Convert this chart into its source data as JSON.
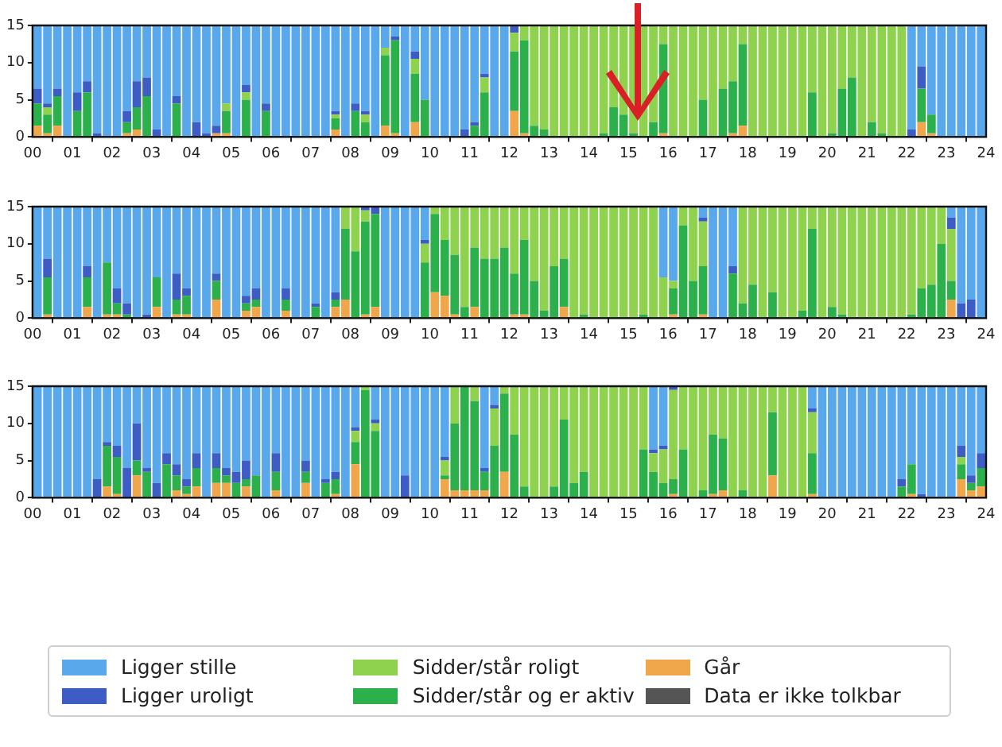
{
  "chart_data": [
    {
      "type": "bar",
      "stacked": true,
      "xlim": [
        0,
        24
      ],
      "ylim": [
        0,
        15
      ],
      "yticks": [
        0,
        5,
        10,
        15
      ],
      "legend": "bottom",
      "xticks": [
        {
          "value": 0,
          "label": "00"
        },
        {
          "value": 1,
          "label": "01"
        },
        {
          "value": 2,
          "label": "02"
        },
        {
          "value": 3,
          "label": "03"
        },
        {
          "value": 4,
          "label": "04"
        },
        {
          "value": 5,
          "label": "05"
        },
        {
          "value": 6,
          "label": "06"
        },
        {
          "value": 7,
          "label": "07"
        },
        {
          "value": 8,
          "label": "08"
        },
        {
          "value": 9,
          "label": "09"
        },
        {
          "value": 10,
          "label": "10"
        },
        {
          "value": 11,
          "label": "11"
        },
        {
          "value": 12,
          "label": "12"
        },
        {
          "value": 13,
          "label": "13"
        },
        {
          "value": 14,
          "label": "14"
        },
        {
          "value": 15,
          "label": "15"
        },
        {
          "value": 16,
          "label": "16"
        },
        {
          "value": 17,
          "label": "17"
        },
        {
          "value": 18,
          "label": "18"
        },
        {
          "value": 19,
          "label": "19"
        },
        {
          "value": 20,
          "label": "20"
        },
        {
          "value": 21,
          "label": "21"
        },
        {
          "value": 22,
          "label": "22"
        },
        {
          "value": 23,
          "label": "23"
        },
        {
          "value": 24,
          "label": "24"
        }
      ],
      "x": [
        0.125,
        0.375,
        0.625,
        0.875,
        1.125,
        1.375,
        1.625,
        1.875,
        2.125,
        2.375,
        2.625,
        2.875,
        3.125,
        3.375,
        3.625,
        3.875,
        4.125,
        4.375,
        4.625,
        4.875,
        5.125,
        5.375,
        5.625,
        5.875,
        6.125,
        6.375,
        6.625,
        6.875,
        7.125,
        7.375,
        7.625,
        7.875,
        8.125,
        8.375,
        8.625,
        8.875,
        9.125,
        9.375,
        9.625,
        9.875,
        10.125,
        10.375,
        10.625,
        10.875,
        11.125,
        11.375,
        11.625,
        11.875,
        12.125,
        12.375,
        12.625,
        12.875,
        13.125,
        13.375,
        13.625,
        13.875,
        14.125,
        14.375,
        14.625,
        14.875,
        15.125,
        15.375,
        15.625,
        15.875,
        16.125,
        16.375,
        16.625,
        16.875,
        17.125,
        17.375,
        17.625,
        17.875,
        18.125,
        18.375,
        18.625,
        18.875,
        19.125,
        19.375,
        19.625,
        19.875,
        20.125,
        20.375,
        20.625,
        20.875,
        21.125,
        21.375,
        21.625,
        21.875,
        22.125,
        22.375,
        22.625,
        22.875,
        23.125,
        23.375,
        23.625,
        23.875
      ],
      "series": [
        {
          "name": "Går",
          "color": "#f0a64a",
          "values": [
            1.5,
            0.5,
            1.5,
            0,
            0,
            0,
            0,
            0,
            0,
            0.5,
            1,
            0,
            0,
            0,
            0,
            0,
            0,
            0,
            0.5,
            0.5,
            0,
            0,
            0,
            0,
            0,
            0,
            0,
            0,
            0,
            0,
            1,
            0,
            0,
            0,
            0,
            1.5,
            0.5,
            0,
            2,
            0,
            0,
            0,
            0,
            0,
            0,
            0,
            0,
            0,
            3.5,
            0.5,
            0,
            0,
            0,
            0,
            0,
            0,
            0,
            0,
            0,
            0,
            0,
            0,
            0,
            0.5,
            0,
            0,
            0,
            0,
            0,
            0,
            0.5,
            1.5,
            0,
            0,
            0,
            0,
            0,
            0,
            0,
            0,
            0,
            0,
            0,
            0,
            0,
            0,
            0,
            0,
            0,
            2,
            0.5,
            0,
            0,
            0,
            0,
            0
          ]
        },
        {
          "name": "Sidder/står og er aktiv",
          "color": "#2cb04c",
          "values": [
            3,
            2.5,
            4,
            0,
            3.5,
            6,
            0,
            0,
            0,
            1.5,
            3,
            5.5,
            0,
            0,
            4.5,
            0,
            0,
            0,
            0,
            3,
            0,
            5,
            0,
            3.5,
            0,
            0,
            0,
            0,
            0,
            0,
            1.5,
            0,
            3.5,
            2,
            0,
            9.5,
            12.5,
            0,
            6.5,
            5,
            0,
            0,
            0,
            0,
            1.5,
            6,
            0,
            0,
            8,
            12.5,
            1.5,
            1,
            0,
            0,
            0,
            0,
            0,
            0.5,
            4,
            3,
            0.5,
            0,
            2,
            12,
            0,
            0,
            0,
            5,
            0,
            6.5,
            7,
            11,
            0,
            0,
            0,
            0,
            0,
            0,
            6,
            0,
            0.5,
            6.5,
            8,
            0,
            2,
            0.5,
            0,
            0,
            0,
            4.5,
            2.5,
            0,
            0,
            0,
            0,
            0
          ]
        },
        {
          "name": "Sidder/står roligt",
          "color": "#8ed24e",
          "values": [
            0,
            1,
            0,
            0,
            0,
            0,
            0,
            0,
            0,
            0,
            0,
            0,
            0,
            0,
            0,
            0,
            0,
            0,
            0,
            1,
            0,
            1,
            0,
            0,
            0,
            0,
            0,
            0,
            0,
            0,
            0.5,
            0,
            0,
            1,
            0,
            1,
            0,
            0,
            2,
            0,
            0,
            0,
            0,
            0,
            0,
            2,
            0,
            0,
            2.5,
            2,
            13.5,
            14,
            15,
            15,
            15,
            15,
            15,
            14.5,
            11,
            12,
            14.5,
            15,
            13,
            2.5,
            15,
            15,
            15,
            10,
            15,
            8.5,
            7.5,
            2.5,
            15,
            15,
            15,
            15,
            15,
            15,
            9,
            15,
            14.5,
            8.5,
            7,
            15,
            13,
            14.5,
            15,
            15,
            0,
            0,
            0,
            0,
            0,
            0,
            0,
            0
          ]
        },
        {
          "name": "Ligger uroligt",
          "color": "#3d5cc4",
          "values": [
            2,
            0.5,
            1,
            0,
            2.5,
            1.5,
            0.5,
            0,
            0,
            1.5,
            3.5,
            2.5,
            1,
            0,
            1,
            0,
            2,
            0.5,
            1,
            0,
            0,
            1,
            0,
            1,
            0,
            0,
            0,
            0,
            0,
            0,
            0.5,
            0,
            1,
            0.5,
            0,
            0,
            0.5,
            0,
            1,
            0,
            0,
            0,
            0,
            1,
            0.5,
            0.5,
            0,
            0,
            1,
            0,
            0,
            0,
            0,
            0,
            0,
            0,
            0,
            0,
            0,
            0,
            0,
            0,
            0,
            0,
            0,
            0,
            0,
            0,
            0,
            0,
            0,
            0,
            0,
            0,
            0,
            0,
            0,
            0,
            0,
            0,
            0,
            0,
            0,
            0,
            0,
            0,
            0,
            0,
            1,
            3,
            0,
            0,
            0,
            0,
            0,
            0
          ]
        },
        {
          "name": "Ligger stille",
          "color": "#5aa8ec",
          "values": [
            8.5,
            10.5,
            8.5,
            15,
            9,
            7.5,
            14.5,
            15,
            15,
            11.5,
            7.5,
            7,
            14,
            15,
            9.5,
            15,
            13,
            14.5,
            13.5,
            10.5,
            15,
            8,
            15,
            10.5,
            15,
            15,
            15,
            15,
            15,
            15,
            11.5,
            15,
            10.5,
            11.5,
            15,
            3,
            1.5,
            15,
            3.5,
            10,
            15,
            15,
            15,
            14,
            13,
            6.5,
            15,
            15,
            0,
            0,
            0,
            0,
            0,
            0,
            0,
            0,
            0,
            0,
            0,
            0,
            0,
            0,
            0,
            0,
            0,
            0,
            0,
            0,
            0,
            0,
            0,
            0,
            0,
            0,
            0,
            0,
            0,
            0,
            0,
            0,
            0,
            0,
            0,
            0,
            0,
            0,
            0,
            0,
            14,
            5.5,
            12,
            15,
            15,
            15,
            15,
            15
          ]
        },
        {
          "name": "Data er ikke tolkbar",
          "color": "#555555",
          "values": [
            0,
            0,
            0,
            0,
            0,
            0,
            0,
            0,
            0,
            0,
            0,
            0,
            0,
            0,
            0,
            0,
            0,
            0,
            0,
            0,
            0,
            0,
            0,
            0,
            0,
            0,
            0,
            0,
            0,
            0,
            0,
            0,
            0,
            0,
            0,
            0,
            0,
            0,
            0,
            0,
            0,
            0,
            0,
            0,
            0,
            0,
            0,
            0,
            0,
            0,
            0,
            0,
            0,
            0,
            0,
            0,
            0,
            0,
            0,
            0,
            0,
            0,
            0,
            0,
            0,
            0,
            0,
            0,
            0,
            0,
            0,
            0,
            0,
            0,
            0,
            0,
            0,
            0,
            0,
            0,
            0,
            0,
            0,
            0,
            0,
            0,
            0,
            0,
            0,
            0,
            0,
            0,
            0,
            0,
            0,
            0
          ]
        }
      ]
    },
    {
      "type": "bar",
      "stacked": true,
      "xlim": [
        0,
        24
      ],
      "ylim": [
        0,
        15
      ],
      "yticks": [
        0,
        5,
        10,
        15
      ],
      "xticks": [
        {
          "value": 0,
          "label": "00"
        },
        {
          "value": 1,
          "label": "01"
        },
        {
          "value": 2,
          "label": "02"
        },
        {
          "value": 3,
          "label": "03"
        },
        {
          "value": 4,
          "label": "04"
        },
        {
          "value": 5,
          "label": "05"
        },
        {
          "value": 6,
          "label": "06"
        },
        {
          "value": 7,
          "label": "07"
        },
        {
          "value": 8,
          "label": "08"
        },
        {
          "value": 9,
          "label": "09"
        },
        {
          "value": 10,
          "label": "10"
        },
        {
          "value": 11,
          "label": "11"
        },
        {
          "value": 12,
          "label": "12"
        },
        {
          "value": 13,
          "label": "13"
        },
        {
          "value": 14,
          "label": "14"
        },
        {
          "value": 15,
          "label": "15"
        },
        {
          "value": 16,
          "label": "16"
        },
        {
          "value": 17,
          "label": "17"
        },
        {
          "value": 18,
          "label": "18"
        },
        {
          "value": 19,
          "label": "19"
        },
        {
          "value": 20,
          "label": "20"
        },
        {
          "value": 21,
          "label": "21"
        },
        {
          "value": 22,
          "label": "22"
        },
        {
          "value": 23,
          "label": "23"
        },
        {
          "value": 24,
          "label": "24"
        }
      ],
      "x": [
        0.125,
        0.375,
        0.625,
        0.875,
        1.125,
        1.375,
        1.625,
        1.875,
        2.125,
        2.375,
        2.625,
        2.875,
        3.125,
        3.375,
        3.625,
        3.875,
        4.125,
        4.375,
        4.625,
        4.875,
        5.125,
        5.375,
        5.625,
        5.875,
        6.125,
        6.375,
        6.625,
        6.875,
        7.125,
        7.375,
        7.625,
        7.875,
        8.125,
        8.375,
        8.625,
        8.875,
        9.125,
        9.375,
        9.625,
        9.875,
        10.125,
        10.375,
        10.625,
        10.875,
        11.125,
        11.375,
        11.625,
        11.875,
        12.125,
        12.375,
        12.625,
        12.875,
        13.125,
        13.375,
        13.625,
        13.875,
        14.125,
        14.375,
        14.625,
        14.875,
        15.125,
        15.375,
        15.625,
        15.875,
        16.125,
        16.375,
        16.625,
        16.875,
        17.125,
        17.375,
        17.625,
        17.875,
        18.125,
        18.375,
        18.625,
        18.875,
        19.125,
        19.375,
        19.625,
        19.875,
        20.125,
        20.375,
        20.625,
        20.875,
        21.125,
        21.375,
        21.625,
        21.875,
        22.125,
        22.375,
        22.625,
        22.875,
        23.125,
        23.375,
        23.625,
        23.875
      ],
      "series": [
        {
          "color": "#f0a64a",
          "values": [
            0,
            0.5,
            0,
            0,
            0,
            1.5,
            0,
            0.5,
            0.5,
            0,
            0,
            0,
            1.5,
            0,
            0.5,
            0.5,
            0,
            0,
            2.5,
            0,
            0,
            1,
            1.5,
            0,
            0,
            1,
            0,
            0,
            0,
            0,
            1.5,
            2.5,
            0,
            0.5,
            1.5,
            0,
            0,
            0,
            0,
            0,
            3.5,
            3,
            0.5,
            0,
            1.5,
            0,
            0,
            0,
            0.5,
            0.5,
            0,
            0,
            0,
            1.5,
            0,
            0,
            0,
            0,
            0,
            0,
            0,
            0,
            0,
            0,
            0.5,
            0,
            0,
            0.5,
            0,
            0,
            0,
            0,
            0,
            0,
            0,
            0,
            0,
            0,
            0,
            0,
            0,
            0,
            0,
            0,
            0,
            0,
            0,
            0,
            0,
            0,
            0,
            0,
            2.5,
            0,
            0,
            0
          ]
        },
        {
          "color": "#2cb04c",
          "values": [
            0,
            5,
            0,
            0,
            0,
            4,
            0,
            7,
            1.5,
            0.5,
            0,
            0,
            4,
            0,
            2,
            2.5,
            0,
            0,
            2.5,
            0,
            0,
            1,
            1,
            0,
            0,
            1.5,
            0,
            0,
            1.5,
            0,
            1,
            9.5,
            9,
            12.5,
            12.5,
            0,
            0,
            0,
            0,
            7.5,
            10.5,
            7.5,
            8,
            1.5,
            8,
            8,
            8,
            9.5,
            5.5,
            10,
            5,
            1,
            7,
            6.5,
            0,
            0.5,
            0,
            0,
            0,
            0,
            0,
            0.5,
            0,
            0,
            3.5,
            12.5,
            5,
            6.5,
            0,
            0,
            6,
            2,
            4.5,
            0,
            3.5,
            0,
            0,
            1,
            12,
            0,
            1.5,
            0.5,
            0,
            0,
            0,
            0,
            0,
            0,
            0.5,
            4,
            4.5,
            10,
            2.5,
            0,
            0,
            0
          ]
        },
        {
          "color": "#8ed24e",
          "values": [
            0,
            0,
            0,
            0,
            0,
            0,
            0,
            0,
            0,
            0,
            0,
            0,
            0,
            0,
            0,
            0,
            0,
            0,
            0,
            0,
            0,
            0,
            0,
            0,
            0,
            0,
            0,
            0,
            0,
            0,
            0,
            3,
            6,
            1.5,
            0,
            0,
            0,
            0,
            0,
            2.5,
            1,
            4.5,
            6.5,
            13.5,
            5.5,
            7,
            7,
            5.5,
            9,
            4.5,
            10,
            14,
            8,
            7,
            15,
            14.5,
            15,
            15,
            15,
            15,
            15,
            14.5,
            15,
            5.5,
            1,
            2.5,
            10,
            6,
            0,
            0,
            0,
            13,
            10.5,
            15,
            11.5,
            15,
            15,
            14,
            3,
            15,
            13.5,
            14.5,
            15,
            15,
            15,
            15,
            15,
            15,
            14.5,
            11,
            10.5,
            5,
            7,
            0,
            0,
            0
          ]
        },
        {
          "color": "#3d5cc4",
          "values": [
            0,
            2.5,
            0,
            0,
            0,
            1.5,
            0,
            0,
            2,
            1.5,
            0,
            0.5,
            0,
            0,
            3.5,
            1,
            0,
            0,
            1,
            0,
            0,
            1,
            1.5,
            0,
            0,
            1.5,
            0,
            0,
            0.5,
            0,
            1,
            0,
            0,
            0.5,
            1,
            0,
            0,
            0,
            0,
            0.5,
            0,
            0,
            0,
            0,
            0,
            0,
            0,
            0,
            0,
            0,
            0,
            0,
            0,
            0,
            0,
            0,
            0,
            0,
            0,
            0,
            0,
            0,
            0,
            0,
            0,
            0,
            0,
            0.5,
            0,
            0,
            1,
            0,
            0,
            0,
            0,
            0,
            0,
            0,
            0,
            0,
            0,
            0,
            0,
            0,
            0,
            0,
            0,
            0,
            0,
            0,
            0,
            0,
            1.5,
            2,
            2.5,
            0
          ]
        },
        {
          "color": "#5aa8ec",
          "values": [
            15,
            7,
            15,
            15,
            15,
            8,
            15,
            7.5,
            11,
            13,
            15,
            14.5,
            9.5,
            15,
            9,
            11,
            15,
            15,
            9,
            15,
            15,
            12,
            11,
            15,
            15,
            11,
            15,
            15,
            13,
            15,
            11.5,
            0,
            0,
            0,
            0,
            15,
            15,
            15,
            15,
            4.5,
            0,
            0,
            0,
            0,
            0,
            0,
            0,
            0,
            0,
            0,
            0,
            0,
            0,
            0,
            0,
            0,
            0,
            0,
            0,
            0,
            0,
            0,
            0,
            9.5,
            10,
            0,
            0,
            1.5,
            15,
            15,
            8,
            0,
            0,
            0,
            0,
            0,
            0,
            0,
            0,
            0,
            0,
            0,
            0,
            0,
            0,
            0,
            0,
            0,
            0,
            0,
            0,
            0,
            1.5,
            13,
            12.5,
            15
          ]
        },
        {
          "color": "#555555",
          "values": [
            0,
            0,
            0,
            0,
            0,
            0,
            0,
            0,
            0,
            0,
            0,
            0,
            0,
            0,
            0,
            0,
            0,
            0,
            0,
            0,
            0,
            0,
            0,
            0,
            0,
            0,
            0,
            0,
            0,
            0,
            0,
            0,
            0,
            0,
            0,
            0,
            0,
            0,
            0,
            0,
            0,
            0,
            0,
            0,
            0,
            0,
            0,
            0,
            0,
            0,
            0,
            0,
            0,
            0,
            0,
            0,
            0,
            0,
            0,
            0,
            0,
            0,
            0,
            0,
            0,
            0,
            0,
            0,
            0,
            0,
            0,
            0,
            0,
            0,
            0,
            0,
            0,
            0,
            0,
            0,
            0,
            0,
            0,
            0,
            0,
            0,
            0,
            0,
            0,
            0,
            0,
            0,
            0,
            0,
            0,
            0
          ]
        }
      ]
    },
    {
      "type": "bar",
      "stacked": true,
      "xlim": [
        0,
        24
      ],
      "ylim": [
        0,
        15
      ],
      "yticks": [
        0,
        5,
        10,
        15
      ],
      "xticks": [
        {
          "value": 0,
          "label": "00"
        },
        {
          "value": 1,
          "label": "01"
        },
        {
          "value": 2,
          "label": "02"
        },
        {
          "value": 3,
          "label": "03"
        },
        {
          "value": 4,
          "label": "04"
        },
        {
          "value": 5,
          "label": "05"
        },
        {
          "value": 6,
          "label": "06"
        },
        {
          "value": 7,
          "label": "07"
        },
        {
          "value": 8,
          "label": "08"
        },
        {
          "value": 9,
          "label": "09"
        },
        {
          "value": 10,
          "label": "10"
        },
        {
          "value": 11,
          "label": "11"
        },
        {
          "value": 12,
          "label": "12"
        },
        {
          "value": 13,
          "label": "13"
        },
        {
          "value": 14,
          "label": "14"
        },
        {
          "value": 15,
          "label": "15"
        },
        {
          "value": 16,
          "label": "16"
        },
        {
          "value": 17,
          "label": "17"
        },
        {
          "value": 18,
          "label": "18"
        },
        {
          "value": 19,
          "label": "19"
        },
        {
          "value": 20,
          "label": "20"
        },
        {
          "value": 21,
          "label": "21"
        },
        {
          "value": 22,
          "label": "22"
        },
        {
          "value": 23,
          "label": "23"
        },
        {
          "value": 24,
          "label": "24"
        }
      ],
      "x": [
        0.125,
        0.375,
        0.625,
        0.875,
        1.125,
        1.375,
        1.625,
        1.875,
        2.125,
        2.375,
        2.625,
        2.875,
        3.125,
        3.375,
        3.625,
        3.875,
        4.125,
        4.375,
        4.625,
        4.875,
        5.125,
        5.375,
        5.625,
        5.875,
        6.125,
        6.375,
        6.625,
        6.875,
        7.125,
        7.375,
        7.625,
        7.875,
        8.125,
        8.375,
        8.625,
        8.875,
        9.125,
        9.375,
        9.625,
        9.875,
        10.125,
        10.375,
        10.625,
        10.875,
        11.125,
        11.375,
        11.625,
        11.875,
        12.125,
        12.375,
        12.625,
        12.875,
        13.125,
        13.375,
        13.625,
        13.875,
        14.125,
        14.375,
        14.625,
        14.875,
        15.125,
        15.375,
        15.625,
        15.875,
        16.125,
        16.375,
        16.625,
        16.875,
        17.125,
        17.375,
        17.625,
        17.875,
        18.125,
        18.375,
        18.625,
        18.875,
        19.125,
        19.375,
        19.625,
        19.875,
        20.125,
        20.375,
        20.625,
        20.875,
        21.125,
        21.375,
        21.625,
        21.875,
        22.125,
        22.375,
        22.625,
        22.875,
        23.125,
        23.375,
        23.625,
        23.875
      ],
      "series": [
        {
          "color": "#f0a64a",
          "values": [
            0,
            0,
            0,
            0,
            0,
            0,
            0,
            1.5,
            0.5,
            0,
            3,
            0,
            0,
            0,
            1,
            0.5,
            1.5,
            0,
            2,
            2,
            0,
            1.5,
            0,
            0,
            1,
            0,
            0,
            2,
            0,
            0,
            0.5,
            0,
            4.5,
            0,
            0,
            0,
            0,
            0,
            0,
            0,
            0,
            2.5,
            1,
            1,
            1,
            1,
            0,
            3.5,
            0,
            0,
            0,
            0,
            0,
            0,
            0,
            0,
            0,
            0,
            0,
            0,
            0,
            0,
            0,
            0,
            0.5,
            0,
            0,
            0,
            0.5,
            1,
            0,
            0,
            0,
            0,
            3,
            0,
            0,
            0,
            0.5,
            0,
            0,
            0,
            0,
            0,
            0,
            0,
            0,
            0,
            0.5,
            0,
            0,
            0,
            0,
            2.5,
            1,
            1.5
          ]
        },
        {
          "color": "#2cb04c",
          "values": [
            0,
            0,
            0,
            0,
            0,
            0,
            0,
            5.5,
            5,
            0,
            2,
            3.5,
            0,
            4.5,
            2,
            1,
            2.5,
            0,
            2,
            1,
            2,
            1,
            3,
            0,
            2.5,
            0,
            0,
            1.5,
            0,
            2,
            2,
            0,
            3,
            14.5,
            9,
            0,
            0,
            0,
            0,
            0,
            0,
            0.5,
            9,
            14,
            12,
            2.5,
            7,
            10.5,
            8.5,
            1.5,
            0,
            0,
            1.5,
            10.5,
            2,
            3.5,
            0,
            0,
            0,
            0,
            0,
            6.5,
            3.5,
            2,
            2,
            6.5,
            0,
            1,
            8,
            7,
            0,
            1,
            0,
            0,
            8.5,
            0,
            0,
            0,
            5.5,
            0,
            0,
            0,
            0,
            0,
            0,
            0,
            0,
            1.5,
            4,
            0,
            0,
            0,
            0,
            2,
            1,
            2.5
          ]
        },
        {
          "color": "#8ed24e",
          "values": [
            0,
            0,
            0,
            0,
            0,
            0,
            0,
            0,
            0,
            0,
            0,
            0,
            0,
            0,
            0,
            0,
            0,
            0,
            0,
            0,
            0,
            0,
            0,
            0,
            0,
            0,
            0,
            0,
            0,
            0,
            0,
            0,
            1.5,
            0.5,
            1,
            0,
            0,
            0,
            0,
            0,
            0,
            2,
            5,
            0,
            2,
            0,
            5,
            1,
            6.5,
            13.5,
            15,
            15,
            13.5,
            4.5,
            13,
            11.5,
            15,
            15,
            15,
            15,
            15,
            8.5,
            2.5,
            4.5,
            12,
            8.5,
            15,
            14,
            6.5,
            7,
            15,
            14,
            15,
            15,
            3.5,
            15,
            15,
            15,
            5.5,
            0,
            0,
            0,
            0,
            0,
            0,
            0,
            0,
            0,
            0,
            0,
            0,
            0,
            0,
            1,
            0,
            0
          ]
        },
        {
          "color": "#3d5cc4",
          "values": [
            0,
            0,
            0,
            0,
            0,
            0,
            2.5,
            0.5,
            1.5,
            4,
            5,
            0.5,
            2,
            1.5,
            1.5,
            1,
            2,
            0,
            2,
            1,
            1.5,
            2.5,
            0,
            0,
            2.5,
            0,
            0,
            1.5,
            0,
            0.5,
            1,
            0,
            0.5,
            0,
            0.5,
            0,
            0,
            3,
            0,
            0,
            0,
            0.5,
            0,
            0,
            0,
            0.5,
            0.5,
            0,
            0,
            0,
            0,
            0,
            0,
            0,
            0,
            0,
            0,
            0,
            0,
            0,
            0,
            0,
            0.5,
            0.5,
            0.5,
            0,
            0,
            0,
            0,
            0,
            0,
            0,
            0,
            0,
            0,
            0,
            0,
            0,
            0.5,
            0,
            0,
            0,
            0,
            0,
            0,
            0,
            0,
            1,
            0,
            0.5,
            0,
            0,
            0,
            1.5,
            1,
            2
          ]
        },
        {
          "color": "#5aa8ec",
          "values": [
            15,
            15,
            15,
            15,
            15,
            15,
            12.5,
            7.5,
            8,
            11,
            5,
            11,
            13,
            9,
            10.5,
            12.5,
            9,
            15,
            9,
            11,
            11.5,
            10,
            12,
            15,
            9,
            15,
            15,
            10,
            15,
            12.5,
            11.5,
            15,
            5.5,
            0,
            4.5,
            15,
            15,
            12,
            15,
            15,
            15,
            9.5,
            0,
            0,
            0,
            11,
            2.5,
            0,
            0,
            0,
            0,
            0,
            0,
            0,
            0,
            0,
            0,
            0,
            0,
            0,
            0,
            0,
            8.5,
            8,
            0,
            0,
            0,
            0,
            0,
            0,
            0,
            0,
            0,
            0,
            0,
            0,
            0,
            0,
            3,
            15,
            15,
            15,
            15,
            15,
            15,
            15,
            15,
            12.5,
            10.5,
            14.5,
            15,
            15,
            15,
            8,
            12,
            9
          ]
        },
        {
          "color": "#555555",
          "values": [
            0,
            0,
            0,
            0,
            0,
            0,
            0,
            0,
            0,
            0,
            0,
            0,
            0,
            0,
            0,
            0,
            0,
            0,
            0,
            0,
            0,
            0,
            0,
            0,
            0,
            0,
            0,
            0,
            0,
            0,
            0,
            0,
            0,
            0,
            0,
            0,
            0,
            0,
            0,
            0,
            0,
            0,
            0,
            0,
            0,
            0,
            0,
            0,
            0,
            0,
            0,
            0,
            0,
            0,
            0,
            0,
            0,
            0,
            0,
            0,
            0,
            0,
            0,
            0,
            0,
            0,
            0,
            0,
            0,
            0,
            0,
            0,
            0,
            0,
            0,
            0,
            0,
            0,
            0,
            0,
            0,
            0,
            0,
            0,
            0,
            0,
            0,
            0,
            0,
            0,
            0,
            0,
            0,
            0,
            0,
            0
          ]
        }
      ]
    }
  ]
}
